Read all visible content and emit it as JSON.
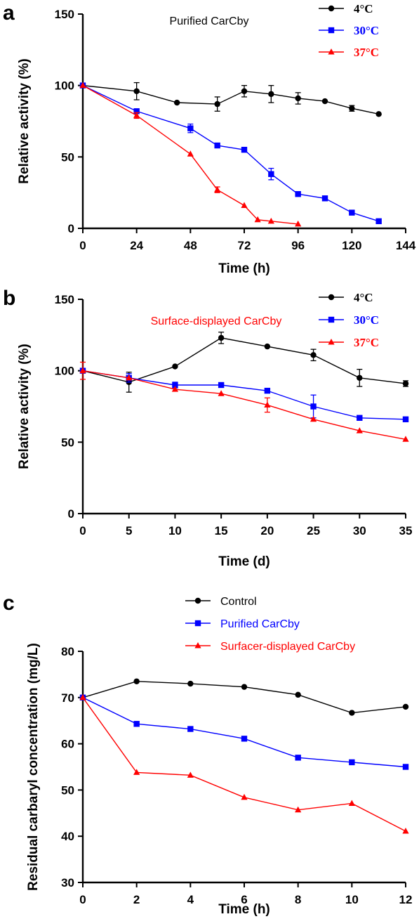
{
  "chart_data": [
    {
      "panel_label": "a",
      "type": "line",
      "title": "Purified CarCby",
      "title_color": "#000000",
      "xlabel": "Time (h)",
      "ylabel": "Relative activity (%)",
      "xlim": [
        0,
        144
      ],
      "ylim": [
        0,
        150
      ],
      "xticks": [
        0,
        24,
        48,
        72,
        96,
        120,
        144
      ],
      "yticks": [
        0,
        50,
        100,
        150
      ],
      "legend_position": "top-right",
      "grid": false,
      "series": [
        {
          "name": "4°C",
          "color": "#000000",
          "marker": "circle",
          "x": [
            0,
            24,
            42,
            60,
            72,
            84,
            96,
            108,
            120,
            132
          ],
          "y": [
            100,
            96,
            88,
            87,
            96,
            94,
            91,
            89,
            84,
            80
          ],
          "err": [
            1,
            6,
            1,
            5,
            4,
            6,
            4,
            1,
            2,
            1
          ]
        },
        {
          "name": "30°C",
          "color": "#0000ff",
          "marker": "square",
          "x": [
            0,
            24,
            48,
            60,
            72,
            84,
            96,
            108,
            120,
            132
          ],
          "y": [
            100,
            82,
            70,
            58,
            55,
            38,
            24,
            21,
            11,
            5
          ],
          "err": [
            1,
            1,
            3,
            1,
            1,
            4,
            1,
            1,
            1,
            1
          ]
        },
        {
          "name": "37°C",
          "color": "#ff0000",
          "marker": "triangle",
          "x": [
            0,
            24,
            48,
            60,
            72,
            78,
            84,
            96
          ],
          "y": [
            100,
            79,
            52,
            27,
            16,
            6,
            5,
            3
          ],
          "err": [
            1,
            2,
            1,
            2,
            1,
            1,
            1,
            1
          ]
        }
      ]
    },
    {
      "panel_label": "b",
      "type": "line",
      "title": "Surface-displayed CarCby",
      "title_color": "#ff0000",
      "xlabel": "Time (d)",
      "ylabel": "Relative activity (%)",
      "xlim": [
        0,
        35
      ],
      "ylim": [
        0,
        150
      ],
      "xticks": [
        0,
        5,
        10,
        15,
        20,
        25,
        30,
        35
      ],
      "yticks": [
        0,
        50,
        100,
        150
      ],
      "legend_position": "top-right",
      "grid": false,
      "series": [
        {
          "name": "4°C",
          "color": "#000000",
          "marker": "circle",
          "x": [
            0,
            5,
            10,
            15,
            20,
            25,
            30,
            35
          ],
          "y": [
            100,
            92,
            103,
            123,
            117,
            111,
            95,
            91
          ],
          "err": [
            1,
            7,
            1,
            4,
            1,
            4,
            6,
            2
          ]
        },
        {
          "name": "30°C",
          "color": "#0000ff",
          "marker": "square",
          "x": [
            0,
            5,
            10,
            15,
            20,
            25,
            30,
            35
          ],
          "y": [
            100,
            95,
            90,
            90,
            86,
            75,
            67,
            66
          ],
          "err": [
            1,
            3,
            2,
            1,
            1,
            8,
            1,
            1
          ]
        },
        {
          "name": "37°C",
          "color": "#ff0000",
          "marker": "triangle",
          "x": [
            0,
            5,
            10,
            15,
            20,
            25,
            30,
            35
          ],
          "y": [
            100,
            95,
            87,
            84,
            76,
            66,
            58,
            52
          ],
          "err": [
            6,
            1,
            1,
            1,
            5,
            1,
            1,
            1
          ]
        }
      ]
    },
    {
      "panel_label": "c",
      "type": "line",
      "title": "",
      "xlabel": "Time (h)",
      "ylabel_line1": "Residual carbaryl  concentration (mg/L)",
      "xlim": [
        0,
        12
      ],
      "ylim": [
        30,
        80
      ],
      "xticks": [
        0,
        2,
        4,
        6,
        8,
        10,
        12
      ],
      "yticks": [
        30,
        40,
        50,
        60,
        70,
        80
      ],
      "legend_position": "top",
      "grid": false,
      "series": [
        {
          "name": "Control",
          "color": "#000000",
          "marker": "circle",
          "x": [
            0,
            2,
            4,
            6,
            8,
            10,
            12
          ],
          "y": [
            70,
            73.5,
            73,
            72.3,
            70.6,
            66.7,
            68
          ]
        },
        {
          "name": "Purified CarCby",
          "color": "#0000ff",
          "marker": "square",
          "x": [
            0,
            2,
            4,
            6,
            8,
            10,
            12
          ],
          "y": [
            70,
            64.3,
            63.2,
            61.1,
            57,
            56,
            55
          ]
        },
        {
          "name": "Surfacer-displayed CarCby",
          "color": "#ff0000",
          "marker": "triangle",
          "x": [
            0,
            2,
            4,
            6,
            8,
            10,
            12
          ],
          "y": [
            70,
            53.8,
            53.2,
            48.4,
            45.7,
            47.1,
            41.1
          ]
        }
      ]
    }
  ]
}
